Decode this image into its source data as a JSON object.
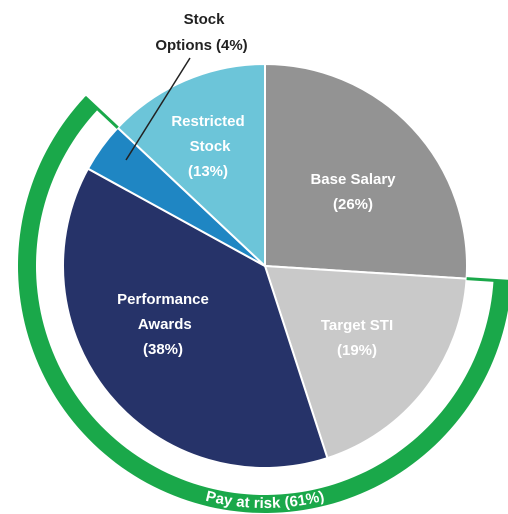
{
  "chart_data": {
    "type": "pie",
    "categories": [
      "Base Salary",
      "Target STI",
      "Performance Awards",
      "Stock Options",
      "Restricted Stock"
    ],
    "values": [
      26,
      19,
      38,
      4,
      13
    ],
    "value_labels": [
      "(26%)",
      "(19%)",
      "(38%)",
      "(4%)",
      "(13%)"
    ],
    "colors": [
      "#939393",
      "#c9c9c9",
      "#263369",
      "#1f86c3",
      "#6cc5d9"
    ],
    "annotation": {
      "label": "Pay at risk (61%)",
      "value": 61,
      "color": "#1aa84a"
    }
  }
}
